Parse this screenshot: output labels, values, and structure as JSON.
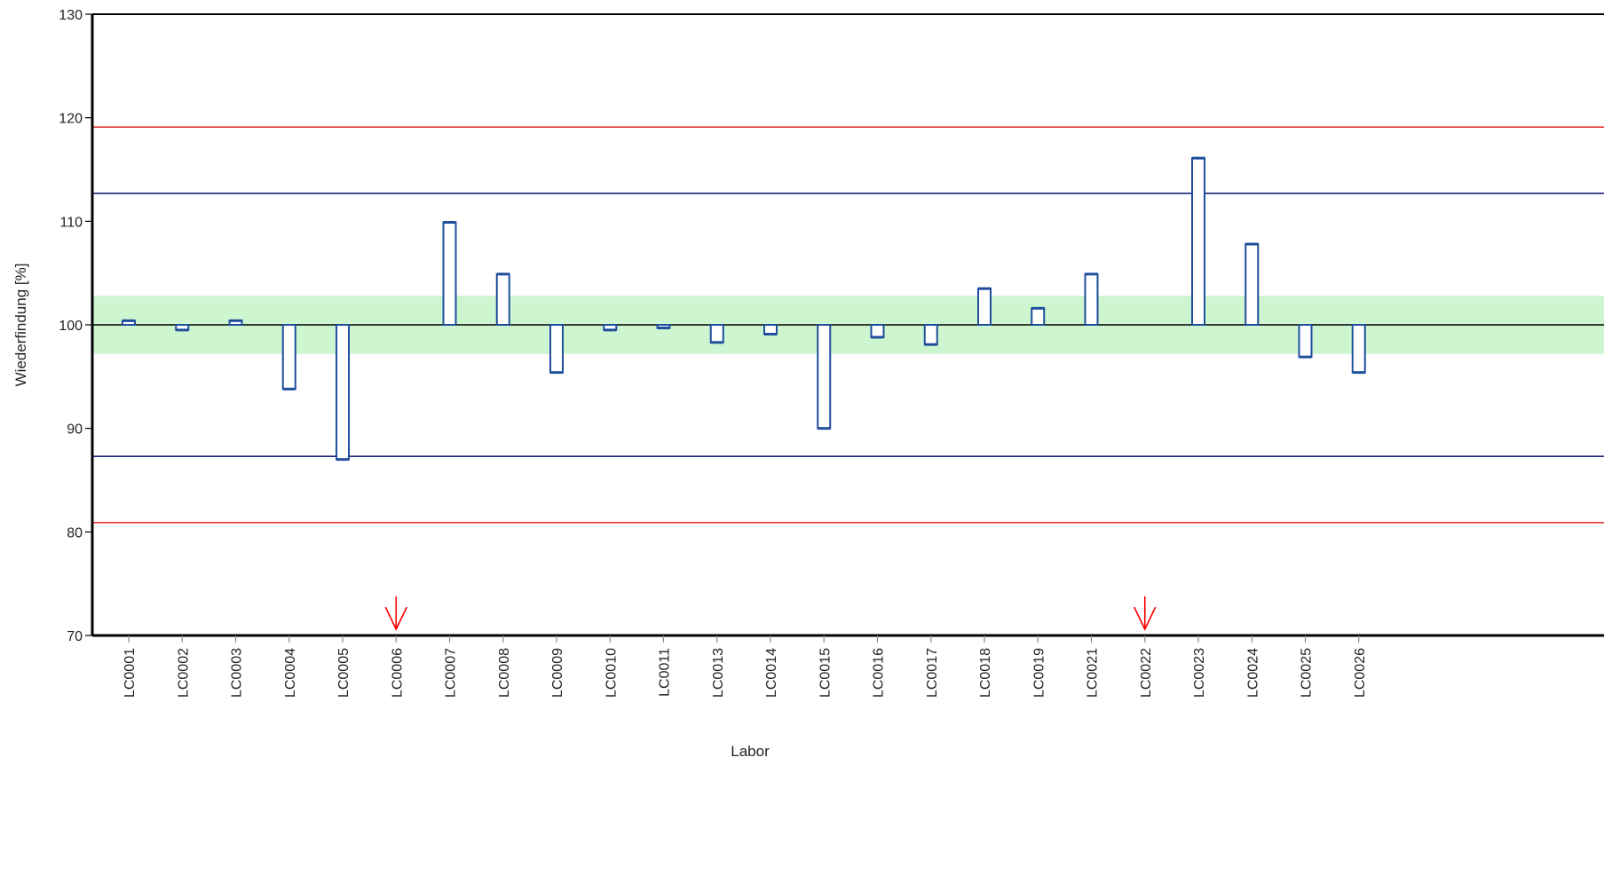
{
  "chart_data": {
    "type": "bar",
    "xlabel": "Labor",
    "ylabel": "Wiederfindung [%]",
    "ylim": [
      70,
      130
    ],
    "yticks": [
      70,
      80,
      90,
      100,
      110,
      120,
      130
    ],
    "baseline": 100,
    "categories": [
      "LC0001",
      "LC0002",
      "LC0003",
      "LC0004",
      "LC0005",
      "LC0006",
      "LC0007",
      "LC0008",
      "LC0009",
      "LC0010",
      "LC0011",
      "LC0013",
      "LC0014",
      "LC0015",
      "LC0016",
      "LC0017",
      "LC0018",
      "LC0019",
      "LC0021",
      "LC0022",
      "LC0023",
      "LC0024",
      "LC0025",
      "LC0026"
    ],
    "values": [
      100.4,
      99.5,
      100.4,
      93.8,
      87.0,
      null,
      109.9,
      104.9,
      95.4,
      99.5,
      99.7,
      98.3,
      99.1,
      90.0,
      98.8,
      98.1,
      103.5,
      101.6,
      104.9,
      null,
      116.1,
      107.8,
      96.9,
      95.4
    ],
    "out_of_range_markers": [
      "LC0006",
      "LC0022"
    ],
    "tolerance_band": [
      97.2,
      102.8
    ],
    "inner_limits": [
      87.3,
      112.7
    ],
    "outer_limits": [
      80.9,
      119.1
    ],
    "grid": false,
    "colors": {
      "bar_stroke": "#1f4e9c",
      "bar_fill": "#ffffff",
      "band": "#cdf5cf",
      "inner_limit": "#1a237e",
      "outer_limit": "#e53935",
      "marker": "#ff0000",
      "axis": "#000000"
    }
  }
}
